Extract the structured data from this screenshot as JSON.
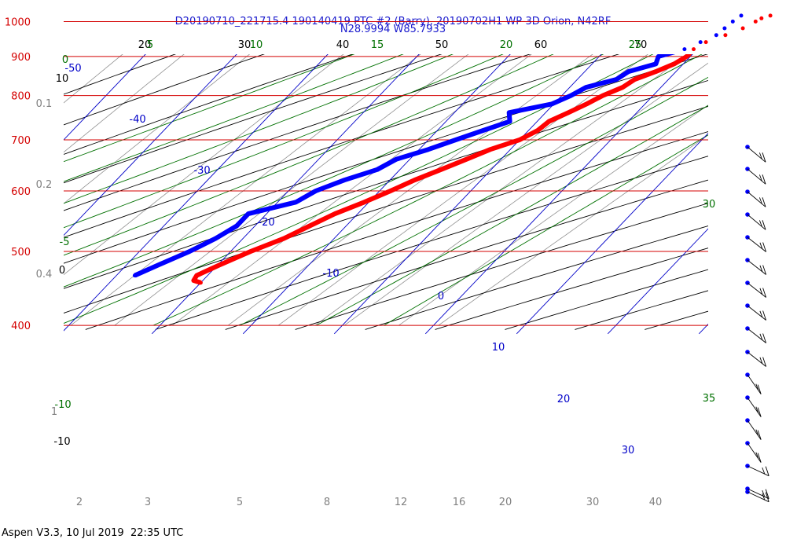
{
  "title_line1": "D20190710_221715.4 190140419 PTC #2 (Barry), 20190702H1 WP-3D Orion, N42RF",
  "title_line2": "N28.9994 W85.7933",
  "footer": "Aspen V3.3, 10 Jul 2019  22:35 UTC",
  "colors": {
    "isobar": "#d40000",
    "temperature": "#ff0000",
    "dewpoint": "#0000ff",
    "isotherm": "#0000c8",
    "dry_adiabat": "#000000",
    "moist_adiabat": "#007000",
    "mixing_ratio": "#909090",
    "wind": "#0000ff"
  },
  "chart_data": {
    "type": "line",
    "title": "D20190710_221715.4 190140419 PTC #2 (Barry), 20190702H1 WP-3D Orion, N42RF",
    "subtitle": "N28.9994 W85.7933",
    "y_axis": {
      "scale": "log",
      "unit": "hPa",
      "range": [
        1000,
        400
      ],
      "ticks": [
        "400",
        "500",
        "600",
        "700",
        "800",
        "900",
        "1000"
      ]
    },
    "dry_adiabat_labels": [
      "20",
      "30",
      "40",
      "50",
      "60",
      "70",
      "10",
      "0",
      "-10"
    ],
    "moist_adiabat_labels": [
      "5",
      "10",
      "15",
      "20",
      "25",
      "30",
      "35",
      "0",
      "-5",
      "-10"
    ],
    "isotherm_labels": [
      "-50",
      "-40",
      "-30",
      "-20",
      "-10",
      "0",
      "10",
      "20",
      "30"
    ],
    "mixing_ratio_labels": [
      "0.1",
      "0.2",
      "0.4",
      "1",
      "2",
      "3",
      "5",
      "8",
      "12",
      "16",
      "20",
      "30",
      "40"
    ],
    "series": [
      {
        "name": "temperature",
        "points": [
          {
            "p": 1018,
            "t": 24.5
          },
          {
            "p": 1010,
            "t": 23.8
          },
          {
            "p": 1000,
            "t": 23.5
          },
          {
            "p": 980,
            "t": 22.8
          },
          {
            "p": 960,
            "t": 21.6
          },
          {
            "p": 940,
            "t": 20.2
          },
          {
            "p": 920,
            "t": 19.6
          },
          {
            "p": 900,
            "t": 19.6
          },
          {
            "p": 880,
            "t": 19.0
          },
          {
            "p": 860,
            "t": 17.8
          },
          {
            "p": 840,
            "t": 16.3
          },
          {
            "p": 820,
            "t": 15.8
          },
          {
            "p": 800,
            "t": 14.5
          },
          {
            "p": 780,
            "t": 13.6
          },
          {
            "p": 760,
            "t": 12.5
          },
          {
            "p": 740,
            "t": 11.3
          },
          {
            "p": 720,
            "t": 11.0
          },
          {
            "p": 700,
            "t": 10.0
          },
          {
            "p": 680,
            "t": 7.8
          },
          {
            "p": 660,
            "t": 6.2
          },
          {
            "p": 640,
            "t": 4.5
          },
          {
            "p": 620,
            "t": 2.7
          },
          {
            "p": 600,
            "t": 1.2
          },
          {
            "p": 580,
            "t": -0.5
          },
          {
            "p": 560,
            "t": -2.5
          },
          {
            "p": 540,
            "t": -4.0
          },
          {
            "p": 520,
            "t": -5.5
          },
          {
            "p": 500,
            "t": -7.8
          },
          {
            "p": 480,
            "t": -9.8
          },
          {
            "p": 465,
            "t": -11.2
          },
          {
            "p": 458,
            "t": -11.0
          },
          {
            "p": 455,
            "t": -10.0
          }
        ]
      },
      {
        "name": "dewpoint",
        "points": [
          {
            "p": 1018,
            "t": 21.3
          },
          {
            "p": 1000,
            "t": 21.0
          },
          {
            "p": 980,
            "t": 20.8
          },
          {
            "p": 960,
            "t": 20.6
          },
          {
            "p": 940,
            "t": 19.6
          },
          {
            "p": 920,
            "t": 18.6
          },
          {
            "p": 900,
            "t": 16.5
          },
          {
            "p": 880,
            "t": 17.0
          },
          {
            "p": 860,
            "t": 14.8
          },
          {
            "p": 840,
            "t": 14.3
          },
          {
            "p": 820,
            "t": 11.8
          },
          {
            "p": 800,
            "t": 11.0
          },
          {
            "p": 780,
            "t": 9.8
          },
          {
            "p": 760,
            "t": 6.0
          },
          {
            "p": 740,
            "t": 7.0
          },
          {
            "p": 720,
            "t": 5.0
          },
          {
            "p": 700,
            "t": 3.0
          },
          {
            "p": 680,
            "t": 1.0
          },
          {
            "p": 660,
            "t": -1.5
          },
          {
            "p": 640,
            "t": -2.5
          },
          {
            "p": 620,
            "t": -5.0
          },
          {
            "p": 600,
            "t": -7.0
          },
          {
            "p": 580,
            "t": -8.0
          },
          {
            "p": 560,
            "t": -12.0
          },
          {
            "p": 540,
            "t": -12.0
          },
          {
            "p": 520,
            "t": -13.0
          },
          {
            "p": 500,
            "t": -14.5
          },
          {
            "p": 480,
            "t": -16.5
          },
          {
            "p": 465,
            "t": -18.0
          }
        ]
      }
    ]
  }
}
